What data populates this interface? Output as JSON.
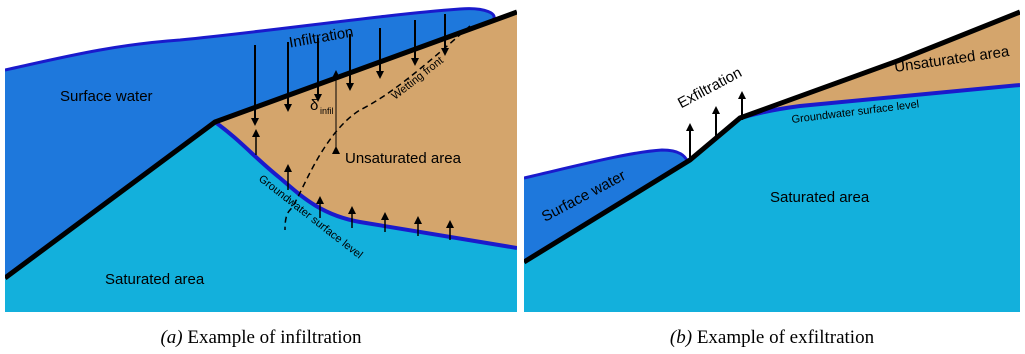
{
  "panels": [
    {
      "labels": {
        "infiltration": "Infiltration",
        "surface_water": "Surface water",
        "delta": "δ",
        "delta_sub": "infil",
        "wetting_front": "Wetting front",
        "unsaturated": "Unsaturated area",
        "groundwater": "Groundwater surface level",
        "saturated": "Saturated area"
      },
      "caption": {
        "prefix": "(a)",
        "text": "Example of infiltration"
      }
    },
    {
      "labels": {
        "exfiltration": "Exfiltration",
        "surface_water": "Surface water",
        "unsaturated": "Unsaturated area",
        "groundwater": "Groundwater surface level",
        "saturated": "Saturated area"
      },
      "caption": {
        "prefix": "(b)",
        "text": "Example of exfiltration"
      }
    }
  ]
}
